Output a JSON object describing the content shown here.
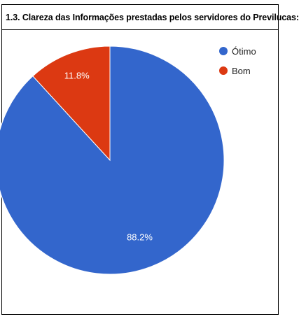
{
  "chart_data": {
    "type": "pie",
    "title": "1.3. Clareza das Informações prestadas pelos servidores do Previlucas:",
    "slices": [
      {
        "label": "Ótimo",
        "value": 88.2,
        "display": "88.2%",
        "color": "#3366CC"
      },
      {
        "label": "Bom",
        "value": 11.8,
        "display": "11.8%",
        "color": "#DC3912"
      }
    ],
    "legend_position": "right"
  }
}
